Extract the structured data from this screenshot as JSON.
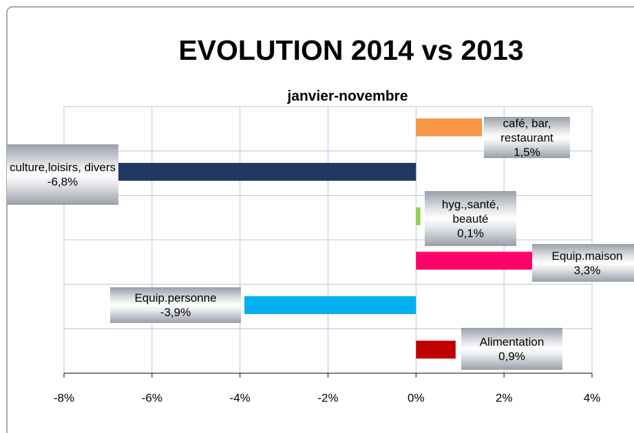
{
  "chart_data": {
    "type": "hbar",
    "title": "EVOLUTION 2014 vs 2013",
    "subtitle": "janvier-novembre",
    "categories": [
      "café, bar, restaurant",
      "culture,loisirs, divers",
      "hyg.,santé, beauté",
      "Equip.maison",
      "Equip.personne",
      "Alimentation"
    ],
    "values": [
      1.5,
      -6.8,
      0.1,
      3.3,
      -3.9,
      0.9
    ],
    "value_labels": [
      "1,5%",
      "-6,8%",
      "0,1%",
      "3,3%",
      "-3,9%",
      "0,9%"
    ],
    "colors": [
      "#f79646",
      "#1f3864",
      "#92d050",
      "#ff0066",
      "#00b0f0",
      "#c00000"
    ],
    "xlim": [
      -8,
      4
    ],
    "xticks": [
      {
        "value": -8,
        "label": "-8%"
      },
      {
        "value": -6,
        "label": "-6%"
      },
      {
        "value": -4,
        "label": "-4%"
      },
      {
        "value": -2,
        "label": "-2%"
      },
      {
        "value": 0,
        "label": "0%"
      },
      {
        "value": 2,
        "label": "2%"
      },
      {
        "value": 4,
        "label": "4%"
      }
    ],
    "grid": true
  }
}
